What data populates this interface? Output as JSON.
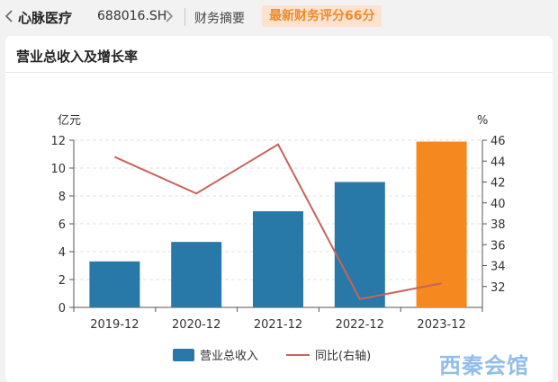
{
  "header": {
    "stock_name": "心脉医疗",
    "stock_code": "688016.SH",
    "section": "财务摘要",
    "score_badge": "最新财务评分66分"
  },
  "card": {
    "title": "营业总收入及增长率"
  },
  "watermark": "西秦会馆",
  "colors": {
    "bar": "#2878a8",
    "bar_highlight": "#f5891f",
    "line": "#c8635a",
    "badge_bg": "#fde3cf",
    "badge_text": "#f08a2a"
  },
  "chart_data": {
    "type": "bar",
    "categories": [
      "2019-12",
      "2020-12",
      "2021-12",
      "2022-12",
      "2023-12"
    ],
    "series": [
      {
        "name": "营业总收入",
        "type": "bar",
        "axis": "left",
        "values": [
          3.3,
          4.7,
          6.9,
          9.0,
          11.9
        ]
      },
      {
        "name": "同比(右轴)",
        "type": "line",
        "axis": "right",
        "values": [
          44.4,
          40.9,
          45.6,
          30.8,
          32.3
        ]
      }
    ],
    "ylabel_left": "亿元",
    "ylabel_right": "%",
    "ylim_left": [
      0,
      12
    ],
    "yticks_left": [
      "0",
      "2",
      "4",
      "6",
      "8",
      "10",
      "12"
    ],
    "ylim_right": [
      30,
      46
    ],
    "yticks_right": [
      "32",
      "34",
      "36",
      "38",
      "40",
      "42",
      "44",
      "46"
    ],
    "highlight_last_bar": true,
    "grid": true,
    "legend_position": "bottom-center"
  }
}
